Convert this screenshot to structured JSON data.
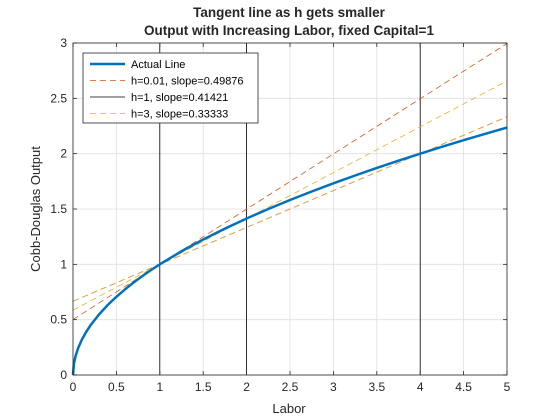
{
  "chart_data": {
    "type": "line",
    "title": [
      "Tangent line as h gets smaller",
      "Output with Increasing Labor, fixed Capital=1"
    ],
    "xlabel": "Labor",
    "ylabel": "Cobb-Douglas Output",
    "xlim": [
      0,
      5
    ],
    "ylim": [
      0,
      3
    ],
    "xticks": [
      0,
      0.5,
      1,
      1.5,
      2,
      2.5,
      3,
      3.5,
      4,
      4.5,
      5
    ],
    "yticks": [
      0,
      0.5,
      1,
      1.5,
      2,
      2.5,
      3
    ],
    "xtick_labels": [
      "0",
      "0.5",
      "1",
      "1.5",
      "2",
      "2.5",
      "3",
      "3.5",
      "4",
      "4.5",
      "5"
    ],
    "ytick_labels": [
      "0",
      "0.5",
      "1",
      "1.5",
      "2",
      "2.5",
      "3"
    ],
    "grid": true,
    "legend_position": "top-left",
    "series": [
      {
        "name": "Actual Line",
        "style": "solid",
        "color": "#0072BD",
        "x": [
          0,
          0.01,
          0.03,
          0.06,
          0.1,
          0.15,
          0.2,
          0.3,
          0.4,
          0.5,
          0.6,
          0.7,
          0.8,
          0.9,
          1.0,
          1.25,
          1.5,
          1.75,
          2.0,
          2.25,
          2.5,
          2.75,
          3.0,
          3.25,
          3.5,
          3.75,
          4.0,
          4.25,
          4.5,
          4.75,
          5.0
        ],
        "y": [
          0,
          0.1,
          0.1732,
          0.2449,
          0.3162,
          0.3873,
          0.4472,
          0.5477,
          0.6325,
          0.7071,
          0.7746,
          0.8367,
          0.8944,
          0.9487,
          1.0,
          1.118,
          1.2247,
          1.3229,
          1.4142,
          1.5,
          1.5811,
          1.6583,
          1.7321,
          1.8028,
          1.8708,
          1.9365,
          2.0,
          2.0616,
          2.1213,
          2.1794,
          2.2361
        ]
      },
      {
        "name": "h=0.01, slope=0.49876",
        "style": "dashed",
        "color": "#D95319",
        "x": [
          0,
          5
        ],
        "y": [
          0.5012,
          2.995
        ]
      },
      {
        "name": "h=1, slope=0.41421",
        "style": "solid",
        "color": "#000000",
        "x": [
          0,
          5
        ],
        "y": [
          0.5858,
          2.6569
        ]
      },
      {
        "name": "h=3, slope=0.33333",
        "style": "dashed",
        "color": "#EDB120",
        "x": [
          0,
          5
        ],
        "y": [
          0.6667,
          2.3333
        ]
      }
    ],
    "extra_lines": [
      {
        "style": "dashed",
        "color": "#EDB120",
        "x": [
          0,
          5
        ],
        "y": [
          0.5858,
          2.6569
        ]
      },
      {
        "style": "dashed",
        "color": "#7E2F8E",
        "x": [
          0,
          5
        ],
        "y": [
          0.6667,
          2.3333
        ]
      }
    ],
    "vertical_lines": [
      {
        "x": 1,
        "color": "#000000"
      },
      {
        "x": 2,
        "color": "#000000"
      },
      {
        "x": 4,
        "color": "#000000"
      }
    ]
  }
}
